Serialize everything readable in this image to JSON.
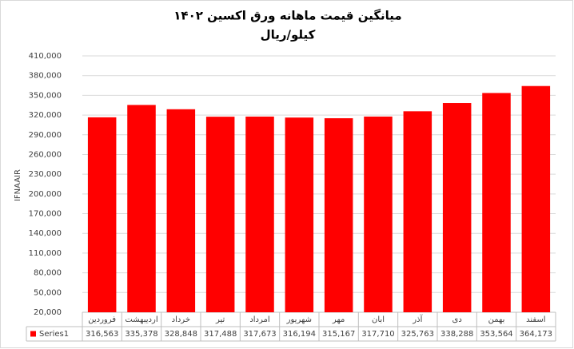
{
  "chart_data": {
    "type": "bar",
    "title": "میانگین قیمت ماهانه ورق اکسین ۱۴۰۲",
    "subtitle": "کیلو/ریال",
    "y_label": "IFNAAIR",
    "categories": [
      "فروردین",
      "اردیبهشت",
      "خرداد",
      "تیر",
      "امرداد",
      "شهریور",
      "مهر",
      "ابان",
      "آذر",
      "دی",
      "بهمن",
      "اسفند"
    ],
    "series": [
      {
        "name": "Series1",
        "color": "#ff0000",
        "values": [
          316563,
          335378,
          328848,
          317488,
          317673,
          316194,
          315167,
          317710,
          325763,
          338288,
          353564,
          364173
        ],
        "value_labels": [
          "316,563",
          "335,378",
          "328,848",
          "317,488",
          "317,673",
          "316,194",
          "315,167",
          "317,710",
          "325,763",
          "338,288",
          "353,564",
          "364,173"
        ]
      }
    ],
    "ylim": [
      20000,
      410000
    ],
    "yticks": [
      {
        "value": 20000,
        "label": "20,000"
      },
      {
        "value": 50000,
        "label": "50,000"
      },
      {
        "value": 80000,
        "label": "80,000"
      },
      {
        "value": 110000,
        "label": "110,000"
      },
      {
        "value": 140000,
        "label": "140,000"
      },
      {
        "value": 170000,
        "label": "170,000"
      },
      {
        "value": 200000,
        "label": "200,000"
      },
      {
        "value": 230000,
        "label": "230,000"
      },
      {
        "value": 260000,
        "label": "260,000"
      },
      {
        "value": 290000,
        "label": "290,000"
      },
      {
        "value": 320000,
        "label": "320,000"
      },
      {
        "value": 350000,
        "label": "350,000"
      },
      {
        "value": 380000,
        "label": "380,000"
      },
      {
        "value": 410000,
        "label": "410,000"
      }
    ],
    "grid": true
  }
}
